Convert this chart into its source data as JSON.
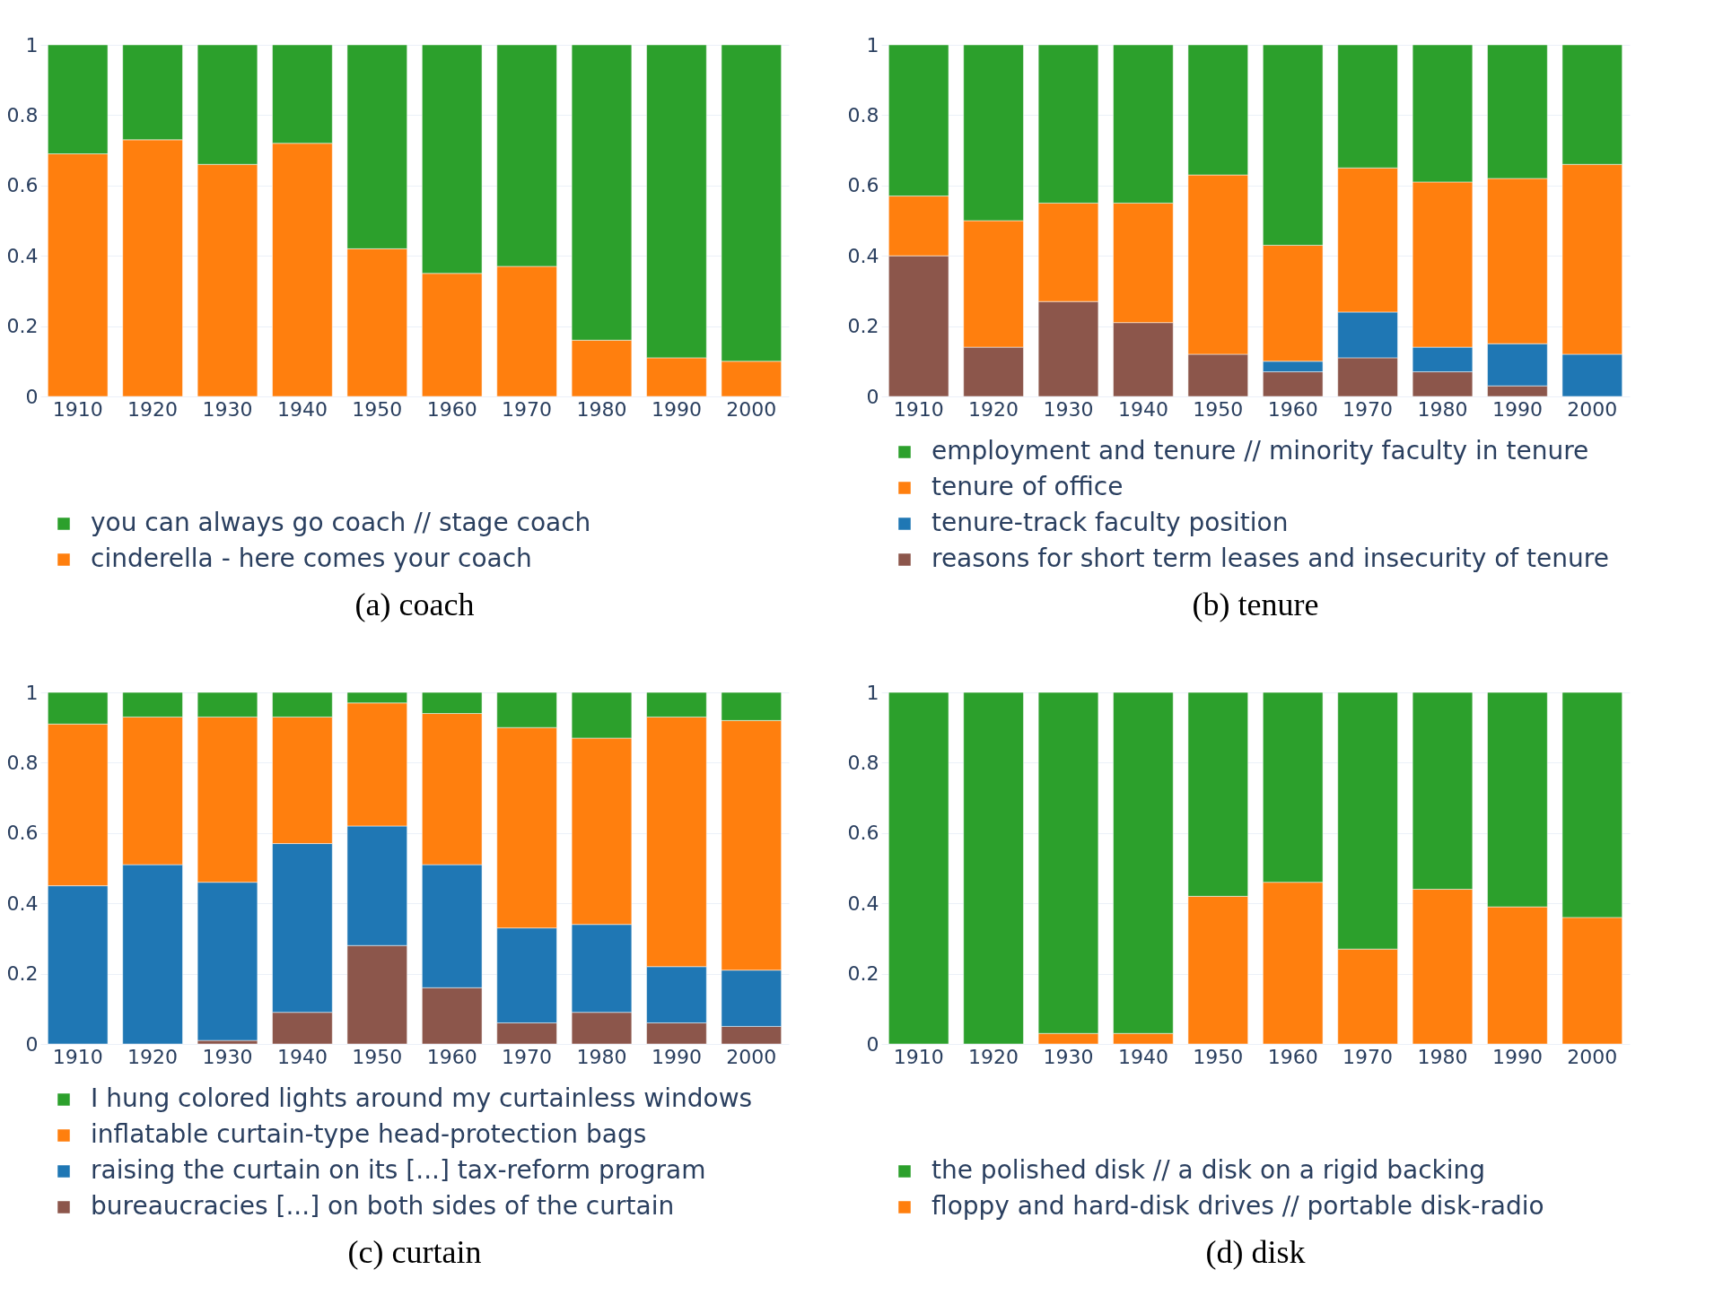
{
  "chart_data": [
    {
      "type": "bar",
      "title": "(a) coach",
      "categories": [
        "1910",
        "1920",
        "1930",
        "1940",
        "1950",
        "1960",
        "1970",
        "1980",
        "1990",
        "2000"
      ],
      "stacked": true,
      "ylim": [
        0,
        1
      ],
      "yticks": [
        0,
        0.2,
        0.4,
        0.6,
        0.8,
        1
      ],
      "grid": "y",
      "legend": "bottom left",
      "series": [
        {
          "name": "cinderella - here comes your coach",
          "color": "#ff7f0e",
          "values": [
            0.69,
            0.73,
            0.66,
            0.72,
            0.42,
            0.35,
            0.37,
            0.16,
            0.11,
            0.1
          ]
        },
        {
          "name": "you can always go coach // stage coach",
          "color": "#2ca02c",
          "values": [
            0.31,
            0.27,
            0.34,
            0.28,
            0.58,
            0.65,
            0.63,
            0.84,
            0.89,
            0.9
          ]
        }
      ]
    },
    {
      "type": "bar",
      "title": "(b) tenure",
      "categories": [
        "1910",
        "1920",
        "1930",
        "1940",
        "1950",
        "1960",
        "1970",
        "1980",
        "1990",
        "2000"
      ],
      "stacked": true,
      "ylim": [
        0,
        1
      ],
      "yticks": [
        0,
        0.2,
        0.4,
        0.6,
        0.8,
        1
      ],
      "grid": "y",
      "legend": "bottom left",
      "series": [
        {
          "name": "reasons for short term leases and insecurity of tenure",
          "color": "#8c564b",
          "values": [
            0.4,
            0.14,
            0.27,
            0.21,
            0.12,
            0.07,
            0.11,
            0.07,
            0.03,
            null
          ]
        },
        {
          "name": "tenure-track faculty position",
          "color": "#1f77b4",
          "values": [
            null,
            null,
            null,
            null,
            null,
            0.03,
            0.13,
            0.07,
            0.12,
            0.12
          ]
        },
        {
          "name": "tenure of office",
          "color": "#ff7f0e",
          "values": [
            0.17,
            0.36,
            0.28,
            0.34,
            0.51,
            0.33,
            0.41,
            0.47,
            0.47,
            0.54
          ]
        },
        {
          "name": "employment and tenure // minority faculty in tenure",
          "color": "#2ca02c",
          "values": [
            0.43,
            0.5,
            0.45,
            0.45,
            0.37,
            0.57,
            0.35,
            0.39,
            0.38,
            0.34
          ]
        }
      ]
    },
    {
      "type": "bar",
      "title": "(c) curtain",
      "categories": [
        "1910",
        "1920",
        "1930",
        "1940",
        "1950",
        "1960",
        "1970",
        "1980",
        "1990",
        "2000"
      ],
      "stacked": true,
      "ylim": [
        0,
        1
      ],
      "yticks": [
        0,
        0.2,
        0.4,
        0.6,
        0.8,
        1
      ],
      "grid": "y",
      "legend": "bottom left",
      "series": [
        {
          "name": "bureaucracies [...] on both sides of the curtain",
          "color": "#8c564b",
          "values": [
            null,
            null,
            0.01,
            0.09,
            0.28,
            0.16,
            0.06,
            0.09,
            0.06,
            0.05
          ]
        },
        {
          "name": "raising the curtain on its [...] tax-reform program",
          "color": "#1f77b4",
          "values": [
            0.45,
            0.51,
            0.45,
            0.48,
            0.34,
            0.35,
            0.27,
            0.25,
            0.16,
            0.16
          ]
        },
        {
          "name": "inflatable curtain-type head-protection bags",
          "color": "#ff7f0e",
          "values": [
            0.46,
            0.42,
            0.47,
            0.36,
            0.35,
            0.43,
            0.57,
            0.53,
            0.71,
            0.71
          ]
        },
        {
          "name": "I hung colored lights around my curtainless windows",
          "color": "#2ca02c",
          "values": [
            0.09,
            0.07,
            0.07,
            0.07,
            0.03,
            0.06,
            0.1,
            0.13,
            0.07,
            0.08
          ]
        }
      ]
    },
    {
      "type": "bar",
      "title": "(d) disk",
      "categories": [
        "1910",
        "1920",
        "1930",
        "1940",
        "1950",
        "1960",
        "1970",
        "1980",
        "1990",
        "2000"
      ],
      "stacked": true,
      "ylim": [
        0,
        1
      ],
      "yticks": [
        0,
        0.2,
        0.4,
        0.6,
        0.8,
        1
      ],
      "grid": "y",
      "legend": "bottom left",
      "series": [
        {
          "name": "floppy and hard-disk drives // portable disk-radio",
          "color": "#ff7f0e",
          "values": [
            null,
            null,
            0.03,
            0.03,
            0.42,
            0.46,
            0.27,
            0.44,
            0.39,
            0.36
          ]
        },
        {
          "name": "the polished disk // a disk on a rigid backing",
          "color": "#2ca02c",
          "values": [
            1,
            1,
            0.97,
            0.97,
            0.58,
            0.54,
            0.73,
            0.56,
            0.61,
            0.64
          ]
        }
      ]
    }
  ]
}
